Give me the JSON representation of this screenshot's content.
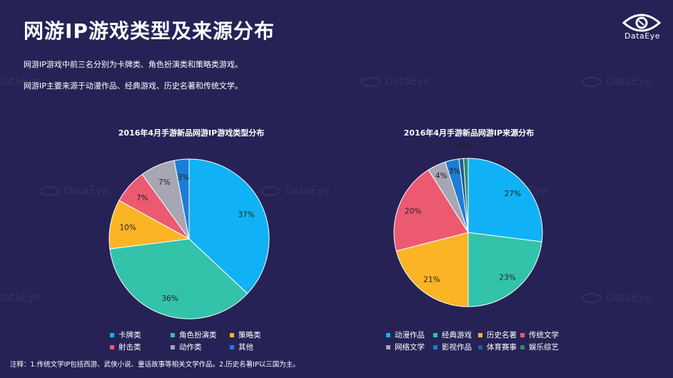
{
  "title": "网游IP游戏类型及来源分布",
  "logo": {
    "text": "DataEye",
    "icon": "eye-logo-icon"
  },
  "watermark": "DataEye",
  "descriptions": [
    "网游IP游戏中前三名分别为卡牌类、角色扮演类和策略类游戏。",
    "网游IP主要来源于动漫作品、经典游戏、历史名著和传统文学。"
  ],
  "chart_data": [
    {
      "type": "pie",
      "title": "2016年4月手游新品网游IP游戏类型分布",
      "categories": [
        "卡牌类",
        "角色扮演类",
        "策略类",
        "射击类",
        "动作类",
        "其他"
      ],
      "values": [
        37,
        36,
        10,
        7,
        7,
        3
      ],
      "labels": [
        "37%",
        "36%",
        "10%",
        "7%",
        "7%",
        "3%"
      ],
      "colors": [
        "#10b2f5",
        "#33c3aa",
        "#fbb425",
        "#ec5a72",
        "#a6a6b4",
        "#1d7dd6"
      ],
      "legend": "bottom"
    },
    {
      "type": "pie",
      "title": "2016年4月手游新品网游IP来源分布",
      "categories": [
        "动漫作品",
        "经典游戏",
        "历史名著",
        "传统文学",
        "网络文学",
        "影视作品",
        "体育赛事",
        "娱乐综艺"
      ],
      "values": [
        27,
        23,
        21,
        20,
        4,
        3,
        1,
        1
      ],
      "labels": [
        "27%",
        "23%",
        "21%",
        "20%",
        "4%",
        "3%",
        "1%",
        "1%"
      ],
      "colors": [
        "#10b2f5",
        "#33c3aa",
        "#fbb425",
        "#ec5a72",
        "#a6a6b4",
        "#1d7dd6",
        "#1d5f8f",
        "#2f8a6e"
      ],
      "legend": "bottom"
    }
  ],
  "note": "注释：1.传统文学IP包括西游、武侠小说、童话故事等相关文学作品。2.历史名著IP以三国为主。"
}
